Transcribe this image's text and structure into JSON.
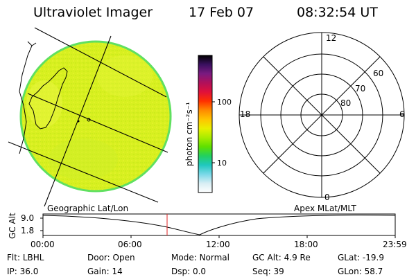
{
  "header": {
    "title": "Ultraviolet Imager",
    "date": "17 Feb 07",
    "time": "08:32:54 UT"
  },
  "colorbar": {
    "unit_label": "photon cm⁻²s⁻¹",
    "ticks": [
      "100",
      "10"
    ],
    "colors": [
      "#000000",
      "#3a1060",
      "#7a1a80",
      "#b0105a",
      "#e0103a",
      "#ff3000",
      "#ff8a00",
      "#ffc400",
      "#e8f000",
      "#a8ec00",
      "#5ee000",
      "#22d060",
      "#20c8c0",
      "#7ad8e8",
      "#d8eef4",
      "#ffffff"
    ]
  },
  "geo_panel": {
    "label": "Geographic Lat/Lon",
    "disk_color": "#d8f020",
    "limb_color": "#60e060"
  },
  "polar_panel": {
    "label": "Apex MLat/MLT",
    "mlt_labels": {
      "top": "12",
      "right": "6",
      "bottom": "0",
      "left": "18"
    },
    "lat_labels": [
      "60",
      "70",
      "80"
    ]
  },
  "altitude_plot": {
    "ylabel": "GC Alt",
    "yticks": [
      "9.0",
      "1.8"
    ],
    "xticks": [
      "00:00",
      "06:00",
      "12:00",
      "18:00",
      "23:59"
    ],
    "current_time_color": "#e02020"
  },
  "status": {
    "row1": [
      {
        "label": "Flt:",
        "value": "LBHL"
      },
      {
        "label": "Door:",
        "value": "Open"
      },
      {
        "label": "Mode:",
        "value": "Normal"
      },
      {
        "label": "GC Alt:",
        "value": "4.9 Re"
      },
      {
        "label": "GLat:",
        "value": "-19.9"
      }
    ],
    "row2": [
      {
        "label": "IP:",
        "value": "36.0"
      },
      {
        "label": "Gain:",
        "value": "14"
      },
      {
        "label": "Dsp:",
        "value": "0.0"
      },
      {
        "label": "Seq:",
        "value": "39"
      },
      {
        "label": "GLon:",
        "value": "58.7"
      }
    ]
  }
}
